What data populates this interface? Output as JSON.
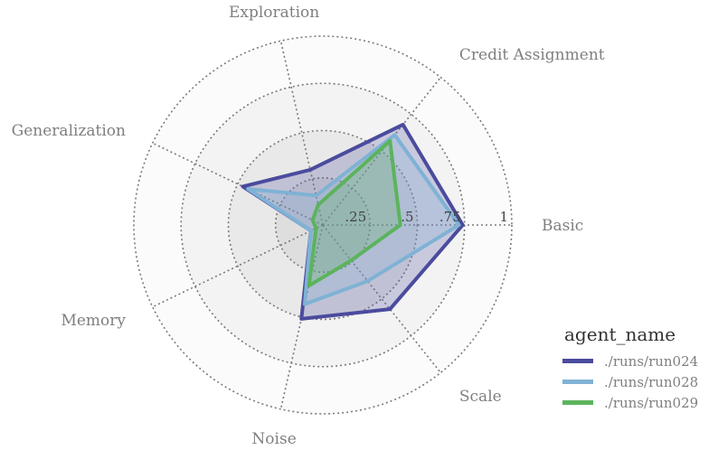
{
  "chart_data": {
    "type": "radar",
    "axes": [
      "Basic",
      "Credit Assignment",
      "Exploration",
      "Generalization",
      "Memory",
      "Noise",
      "Scale"
    ],
    "radial_ticks": [
      {
        "value": 0.25,
        "label": ".25"
      },
      {
        "value": 0.5,
        "label": ".5"
      },
      {
        "value": 0.75,
        "label": ".75"
      },
      {
        "value": 1,
        "label": "1"
      }
    ],
    "rlim": [
      0,
      1
    ],
    "grid": true,
    "legend_position": "bottom-right",
    "legend_title": "agent_name",
    "series": [
      {
        "name": "./runs/run024",
        "color": "#4b4b9e",
        "values": [
          0.74,
          0.68,
          0.3,
          0.47,
          0.07,
          0.51,
          0.57
        ]
      },
      {
        "name": "./runs/run028",
        "color": "#7fb2d4",
        "values": [
          0.72,
          0.61,
          0.16,
          0.44,
          0.07,
          0.43,
          0.38
        ]
      },
      {
        "name": "./runs/run029",
        "color": "#5cb35c",
        "values": [
          0.41,
          0.57,
          0.11,
          0.06,
          0.04,
          0.33,
          0.24
        ]
      }
    ]
  }
}
